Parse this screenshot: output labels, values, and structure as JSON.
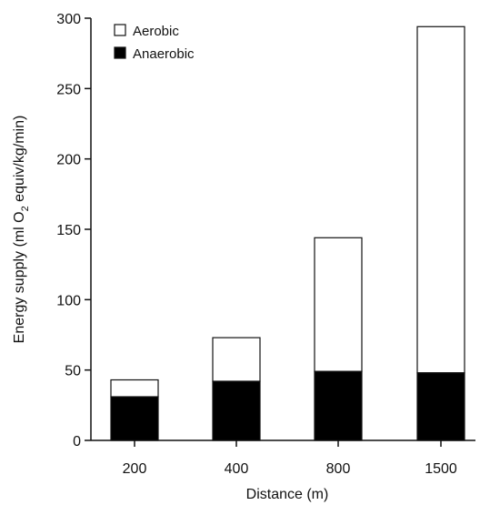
{
  "chart_data": {
    "type": "bar",
    "stacked": true,
    "categories": [
      "200",
      "400",
      "800",
      "1500"
    ],
    "series": [
      {
        "name": "Anaerobic",
        "values": [
          31,
          42,
          49,
          48
        ],
        "color": "#000000"
      },
      {
        "name": "Aerobic",
        "values": [
          12,
          31,
          95,
          246
        ],
        "color": "#ffffff"
      }
    ],
    "totals": [
      43,
      73,
      144,
      294
    ],
    "xlabel": "Distance (m)",
    "ylabel_parts": [
      "Energy supply (ml O",
      "2",
      " equiv/kg/min)"
    ],
    "ylim": [
      0,
      300
    ],
    "yticks": [
      "0",
      "50",
      "100",
      "150",
      "200",
      "250",
      "300"
    ],
    "legend": {
      "placement": "top-left",
      "entries": [
        {
          "label": "Aerobic",
          "color": "#ffffff"
        },
        {
          "label": "Anaerobic",
          "color": "#000000"
        }
      ]
    },
    "grid": false
  }
}
